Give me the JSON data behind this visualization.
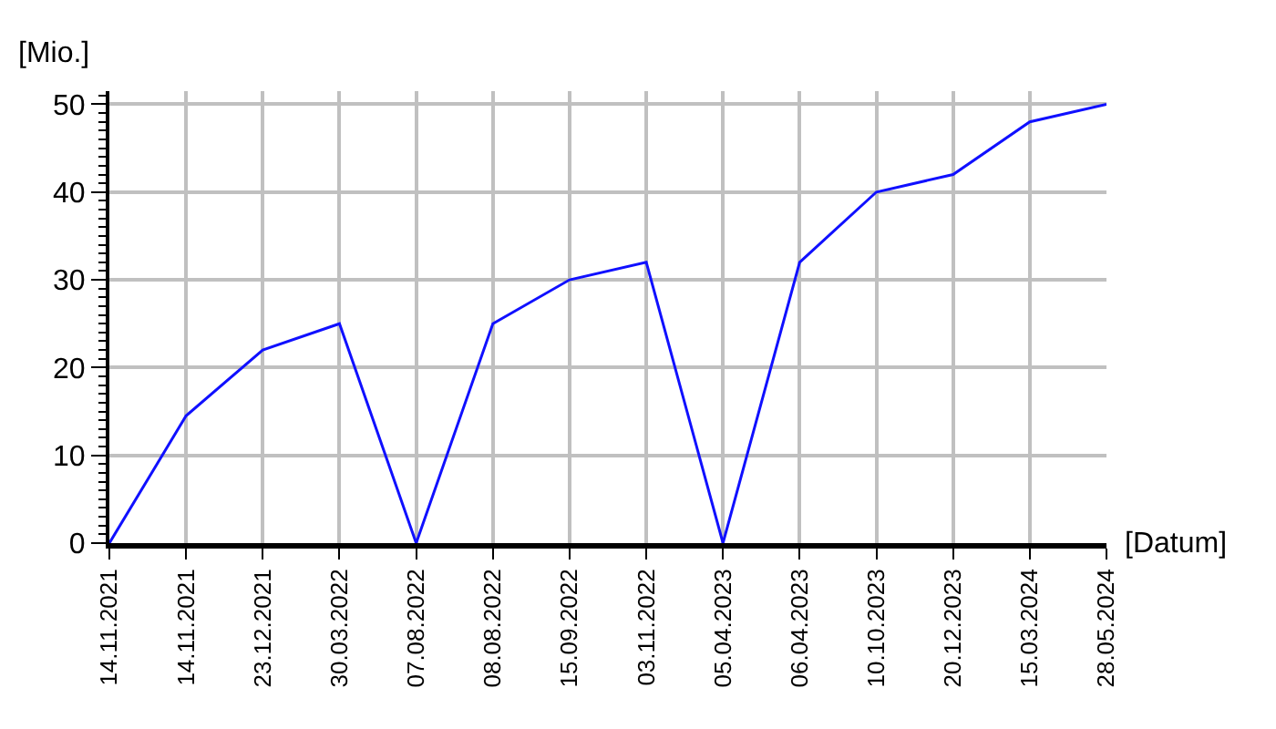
{
  "chart_data": {
    "type": "line",
    "xlabel": "[Datum]",
    "ylabel": "[Mio.]",
    "categories": [
      "14.11.2021",
      "14.11.2021",
      "23.12.2021",
      "30.03.2022",
      "07.08.2022",
      "08.08.2022",
      "15.09.2022",
      "03.11.2022",
      "05.04.2023",
      "06.04.2023",
      "10.10.2023",
      "20.12.2023",
      "15.03.2024",
      "28.05.2024"
    ],
    "series": [
      {
        "color": "#1010ff",
        "values": [
          0,
          14.5,
          22,
          25,
          0,
          25,
          30,
          32,
          0,
          32,
          40,
          42,
          48,
          50
        ]
      }
    ],
    "ylim": [
      0,
      51.5
    ],
    "yticks": [
      0,
      10,
      20,
      30,
      40,
      50
    ],
    "grid": true,
    "marker": "none",
    "line_style": "solid"
  }
}
